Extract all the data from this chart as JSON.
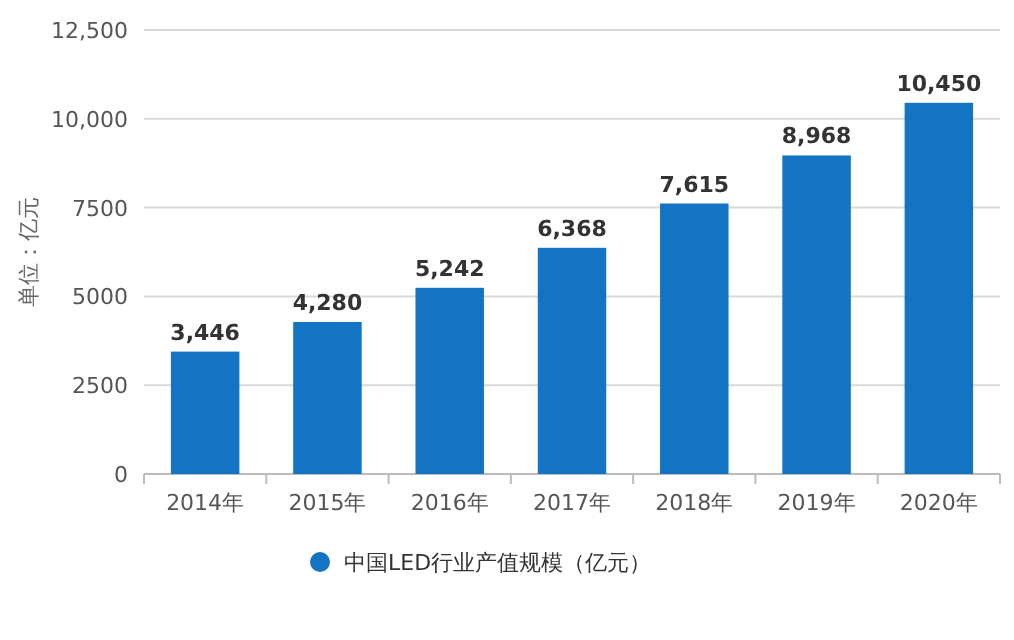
{
  "chart_data": {
    "type": "bar",
    "ylabel": "单位：亿元",
    "categories": [
      "2014年",
      "2015年",
      "2016年",
      "2017年",
      "2018年",
      "2019年",
      "2020年"
    ],
    "series": [
      {
        "name": "中国LED行业产值规模（亿元）",
        "color": "#1474c4",
        "values": [
          3446,
          4280,
          5242,
          6368,
          7615,
          8968,
          10450
        ]
      }
    ],
    "value_labels": [
      "3,446",
      "4,280",
      "5,242",
      "6,368",
      "7,615",
      "8,968",
      "10,450"
    ],
    "ylim": [
      0,
      12500
    ],
    "yticks": [
      0,
      2500,
      5000,
      7500,
      {
        "value": 10000,
        "label": "10,000"
      },
      {
        "value": 12500,
        "label": "12,500"
      }
    ],
    "grid": "y",
    "legend": "bottom"
  }
}
